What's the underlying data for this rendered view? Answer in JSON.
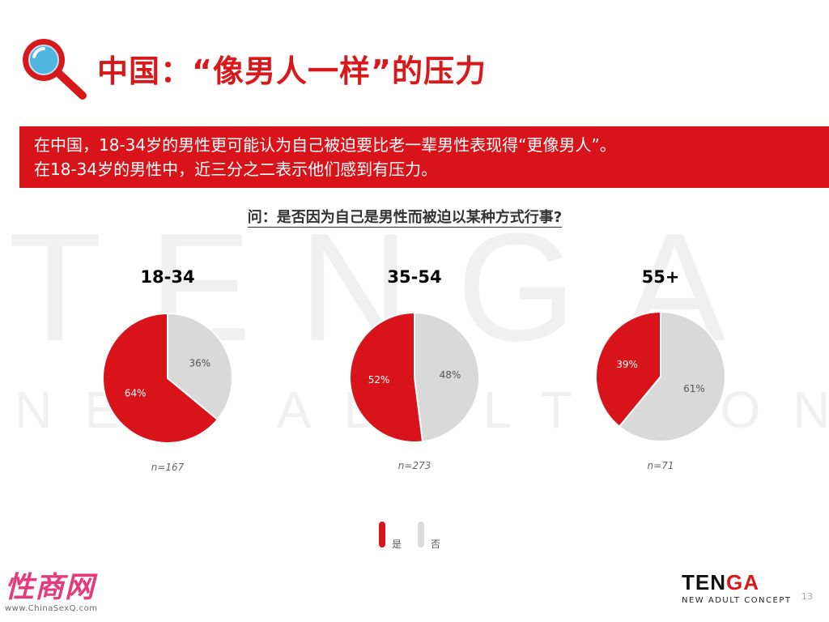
{
  "title": "中国：“像男人一样”的压力",
  "banner": {
    "line1": "在中国，18-34岁的男性更可能认为自己被迫要比老一辈男性表现得“更像男人”。",
    "line2": "在18-34岁的男性中，近三分之二表示他们感到有压力。"
  },
  "question": "问：是否因为自己是男性而被迫以某种方式行事?",
  "colors": {
    "yes": "#d8141a",
    "no": "#d9d9d9",
    "accent": "#d7191c"
  },
  "chart_data": [
    {
      "type": "pie",
      "title": "18-34",
      "n_label": "n=167",
      "categories": [
        "是",
        "否"
      ],
      "values": [
        64,
        36
      ],
      "labels": [
        "64%",
        "36%"
      ]
    },
    {
      "type": "pie",
      "title": "35-54",
      "n_label": "n=273",
      "categories": [
        "是",
        "否"
      ],
      "values": [
        52,
        48
      ],
      "labels": [
        "52%",
        "48%"
      ]
    },
    {
      "type": "pie",
      "title": "55+",
      "n_label": "n=71",
      "categories": [
        "是",
        "否"
      ],
      "values": [
        39,
        61
      ],
      "labels": [
        "39%",
        "61%"
      ]
    }
  ],
  "legend": {
    "yes_label": "是",
    "no_label": "否",
    "placement": "bottom"
  },
  "watermark": {
    "big": "TENGA",
    "small": "NEW ADULT CONCEPT"
  },
  "brand": {
    "name_prefix": "TEN",
    "name_suffix": "GA",
    "tagline": "NEW ADULT CONCEPT"
  },
  "page_number": "13",
  "corner": {
    "text": "性商网",
    "url": "www.ChinaSexQ.com"
  }
}
